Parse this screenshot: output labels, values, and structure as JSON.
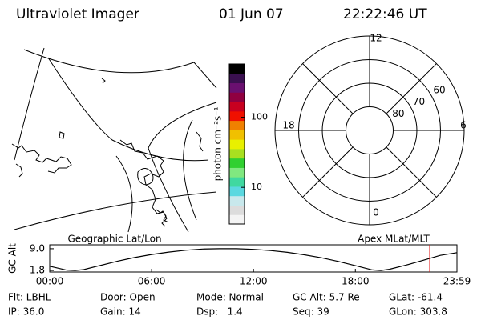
{
  "header": {
    "title": "Ultraviolet Imager",
    "date": "01 Jun 07",
    "time": "22:22:46 UT"
  },
  "map": {
    "title": "Geographic Lat/Lon"
  },
  "chart_data": [
    {
      "type": "colorbar",
      "ylabel": "photon cm⁻²s⁻¹",
      "log": true,
      "ylim": [
        3,
        575
      ],
      "yticks": [
        10,
        100
      ],
      "colors": [
        "#f4f4f4",
        "#dcdcdc",
        "#c8e8ec",
        "#5ad8e0",
        "#40d8a0",
        "#80e880",
        "#30d030",
        "#a8e020",
        "#e8f000",
        "#f0c000",
        "#f08000",
        "#f01000",
        "#c80020",
        "#900040",
        "#6a1070",
        "#3a1050",
        "#000000"
      ]
    },
    {
      "type": "polar",
      "title": "Apex MLat/MLT",
      "rlim": [
        90,
        50
      ],
      "rticks": [
        80,
        70,
        60
      ],
      "thetaticks": [
        0,
        6,
        12,
        18
      ],
      "thetagrid": [
        0,
        3,
        6,
        9,
        12,
        15,
        18,
        21
      ]
    },
    {
      "type": "line",
      "ylabel": "GC Alt",
      "x": [
        0,
        1,
        1.5,
        2,
        3,
        4,
        5,
        6,
        7,
        8,
        9,
        10,
        11,
        12,
        13,
        14,
        15,
        16,
        17,
        18,
        19,
        19.5,
        20,
        21,
        22,
        23,
        23.9833
      ],
      "series": [
        {
          "color": "#000000",
          "values": [
            3.2,
            1.9,
            1.8,
            2.1,
            3.5,
            4.9,
            6.1,
            7.1,
            7.9,
            8.5,
            8.9,
            9.0,
            9.0,
            8.8,
            8.4,
            7.8,
            7.0,
            6.0,
            4.8,
            3.4,
            2.0,
            1.8,
            2.2,
            3.6,
            5.2,
            6.8,
            7.7
          ]
        }
      ],
      "xlim": [
        0,
        23.9833
      ],
      "xticks": [
        {
          "value": 0,
          "label": "00:00"
        },
        {
          "value": 6,
          "label": "06:00"
        },
        {
          "value": 12,
          "label": "12:00"
        },
        {
          "value": 18,
          "label": "18:00"
        },
        {
          "value": 23.9833,
          "label": "23:59"
        }
      ],
      "ylim": [
        1.3,
        10.3
      ],
      "yticks": [
        {
          "value": 9,
          "label": "9.0"
        },
        {
          "value": 1.8,
          "label": "1.8"
        }
      ],
      "marker": {
        "x": 22.3794,
        "color": "#e00000"
      }
    }
  ],
  "footer": {
    "rows": [
      [
        "Flt: LBHL",
        "Door: Open",
        "Mode: Normal",
        "GC Alt: 5.7 Re",
        "GLat: -61.4"
      ],
      [
        "IP: 36.0",
        "Gain: 14",
        "Dsp:   1.4",
        "Seq: 39",
        "GLon: 303.8"
      ]
    ]
  }
}
